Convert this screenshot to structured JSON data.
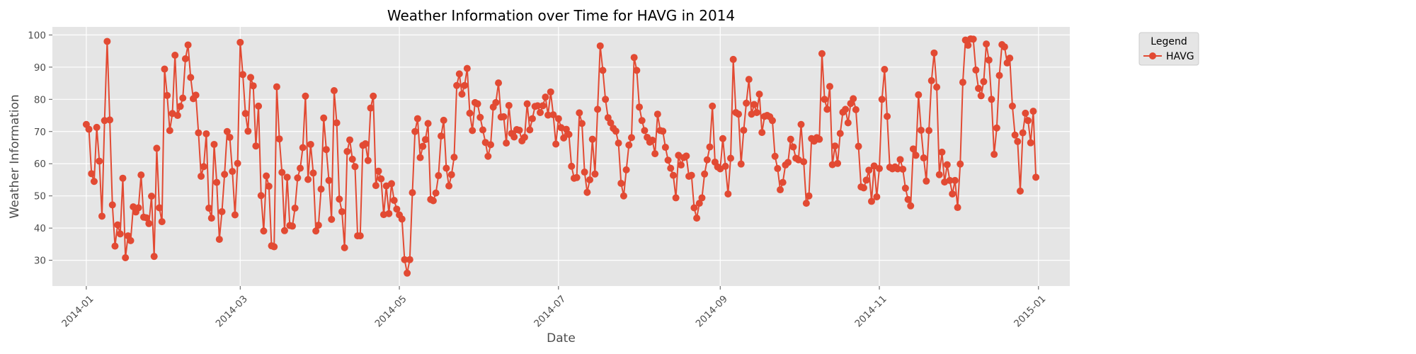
{
  "chart_data": {
    "type": "line",
    "title": "Weather Information over Time for HAVG in 2014",
    "xlabel": "Date",
    "ylabel": "Weather Information",
    "x_ticks": [
      "2014-01",
      "2014-03",
      "2014-05",
      "2014-07",
      "2014-09",
      "2014-11",
      "2015-01"
    ],
    "y_ticks": [
      30,
      40,
      50,
      60,
      70,
      80,
      90,
      100
    ],
    "ylim": [
      22,
      102.5
    ],
    "xlim": [
      "2013-12-19",
      "2015-01-13"
    ],
    "grid": true,
    "style": "ggplot",
    "legend": {
      "title": "Legend",
      "placement": "outside-top-right",
      "entries": [
        "HAVG"
      ]
    },
    "series": [
      {
        "name": "HAVG",
        "color": "#e24a33",
        "start_date": "2014-01-01",
        "step_days": 1,
        "values": [
          72.2,
          70.7,
          56.9,
          54.5,
          71.3,
          60.8,
          43.7,
          73.4,
          98.0,
          73.6,
          47.2,
          34.4,
          41.0,
          38.2,
          55.5,
          30.8,
          37.6,
          36.1,
          46.6,
          45.0,
          46.3,
          56.5,
          43.4,
          43.2,
          41.4,
          49.9,
          31.2,
          64.8,
          46.3,
          42.0,
          89.4,
          81.2,
          70.3,
          75.6,
          93.7,
          75.0,
          77.8,
          80.4,
          92.6,
          96.9,
          86.8,
          80.2,
          81.3,
          69.6,
          56.1,
          59.1,
          69.3,
          46.2,
          43.1,
          66.0,
          54.2,
          36.5,
          45.1,
          56.7,
          70.0,
          68.2,
          57.6,
          44.1,
          60.1,
          97.7,
          87.7,
          75.6,
          70.1,
          86.8,
          84.2,
          65.5,
          77.9,
          50.1,
          39.1,
          56.2,
          53.0,
          34.5,
          34.2,
          83.9,
          67.7,
          57.3,
          39.2,
          55.8,
          40.8,
          40.6,
          46.2,
          55.6,
          58.6,
          65.0,
          81.0,
          55.1,
          66.0,
          57.1,
          39.1,
          40.9,
          52.1,
          74.2,
          64.4,
          54.8,
          42.7,
          82.7,
          72.7,
          49.0,
          45.1,
          33.9,
          63.8,
          67.4,
          61.4,
          59.1,
          37.6,
          37.6,
          65.7,
          66.2,
          61.0,
          77.3,
          81.0,
          53.2,
          57.7,
          55.3,
          44.2,
          53.1,
          44.5,
          53.8,
          48.6,
          45.9,
          44.1,
          42.8,
          30.2,
          26.0,
          30.2,
          51.0,
          70.0,
          74.0,
          61.9,
          65.4,
          67.5,
          72.5,
          48.9,
          48.5,
          50.9,
          56.3,
          68.6,
          73.5,
          58.6,
          53.1,
          56.6,
          62.0,
          84.3,
          87.9,
          81.6,
          84.3,
          89.6,
          75.7,
          70.3,
          79.0,
          78.6,
          74.4,
          70.5,
          66.6,
          62.3,
          65.9,
          77.6,
          79.0,
          85.1,
          74.5,
          74.6,
          66.4,
          78.1,
          69.4,
          68.3,
          70.6,
          70.4,
          67.1,
          68.2,
          78.6,
          70.5,
          74.0,
          77.8,
          78.0,
          75.9,
          78.0,
          80.7,
          75.1,
          82.3,
          75.2,
          66.1,
          74.0,
          71.2,
          68.0,
          70.7,
          69.1,
          59.2,
          55.5,
          55.7,
          75.8,
          72.5,
          57.4,
          51.1,
          55.0,
          67.6,
          56.8,
          76.9,
          96.6,
          89.0,
          80.0,
          74.3,
          72.7,
          71.0,
          70.1,
          66.4,
          53.9,
          50.0,
          58.1,
          65.8,
          68.1,
          93.0,
          89.0,
          77.6,
          73.4,
          70.3,
          68.2,
          66.7,
          67.3,
          63.1,
          75.4,
          70.3,
          70.1,
          65.1,
          61.1,
          58.6,
          56.4,
          49.4,
          62.6,
          59.6,
          61.9,
          62.4,
          56.1,
          56.4,
          46.3,
          43.1,
          47.7,
          49.4,
          56.8,
          61.2,
          65.2,
          77.9,
          60.5,
          59.0,
          58.4,
          67.8,
          59.2,
          50.6,
          61.7,
          92.4,
          75.9,
          75.4,
          59.9,
          70.4,
          78.8,
          86.2,
          75.4,
          78.4,
          75.9,
          81.6,
          69.7,
          74.7,
          75.0,
          74.6,
          73.4,
          62.3,
          58.5,
          51.9,
          54.2,
          59.6,
          60.4,
          67.6,
          65.2,
          61.7,
          61.2,
          72.2,
          60.6,
          47.7,
          50.0,
          67.8,
          67.0,
          68.1,
          67.6,
          94.2,
          80.0,
          76.9,
          84.0,
          59.7,
          65.5,
          60.1,
          69.4,
          76.0,
          76.9,
          72.7,
          78.7,
          80.2,
          76.8,
          65.4,
          52.8,
          52.5,
          54.9,
          58.0,
          48.3,
          59.3,
          49.7,
          58.5,
          80.0,
          89.3,
          74.7,
          58.9,
          58.4,
          59.0,
          58.4,
          61.3,
          58.3,
          52.4,
          48.9,
          46.9,
          64.6,
          62.6,
          81.4,
          70.4,
          61.8,
          54.6,
          70.3,
          85.8,
          94.4,
          83.8,
          56.6,
          63.6,
          54.3,
          59.7,
          54.8,
          50.6,
          54.8,
          46.4,
          59.9,
          85.3,
          98.4,
          96.8,
          98.8,
          98.7,
          89.1,
          83.4,
          81.1,
          85.5,
          97.2,
          92.2,
          80.0,
          62.9,
          71.1,
          87.4,
          97.0,
          96.3,
          91.3,
          92.8,
          77.9,
          68.9,
          66.9,
          51.5,
          69.6,
          75.7,
          73.4,
          66.5,
          76.3,
          55.8
        ]
      }
    ]
  }
}
